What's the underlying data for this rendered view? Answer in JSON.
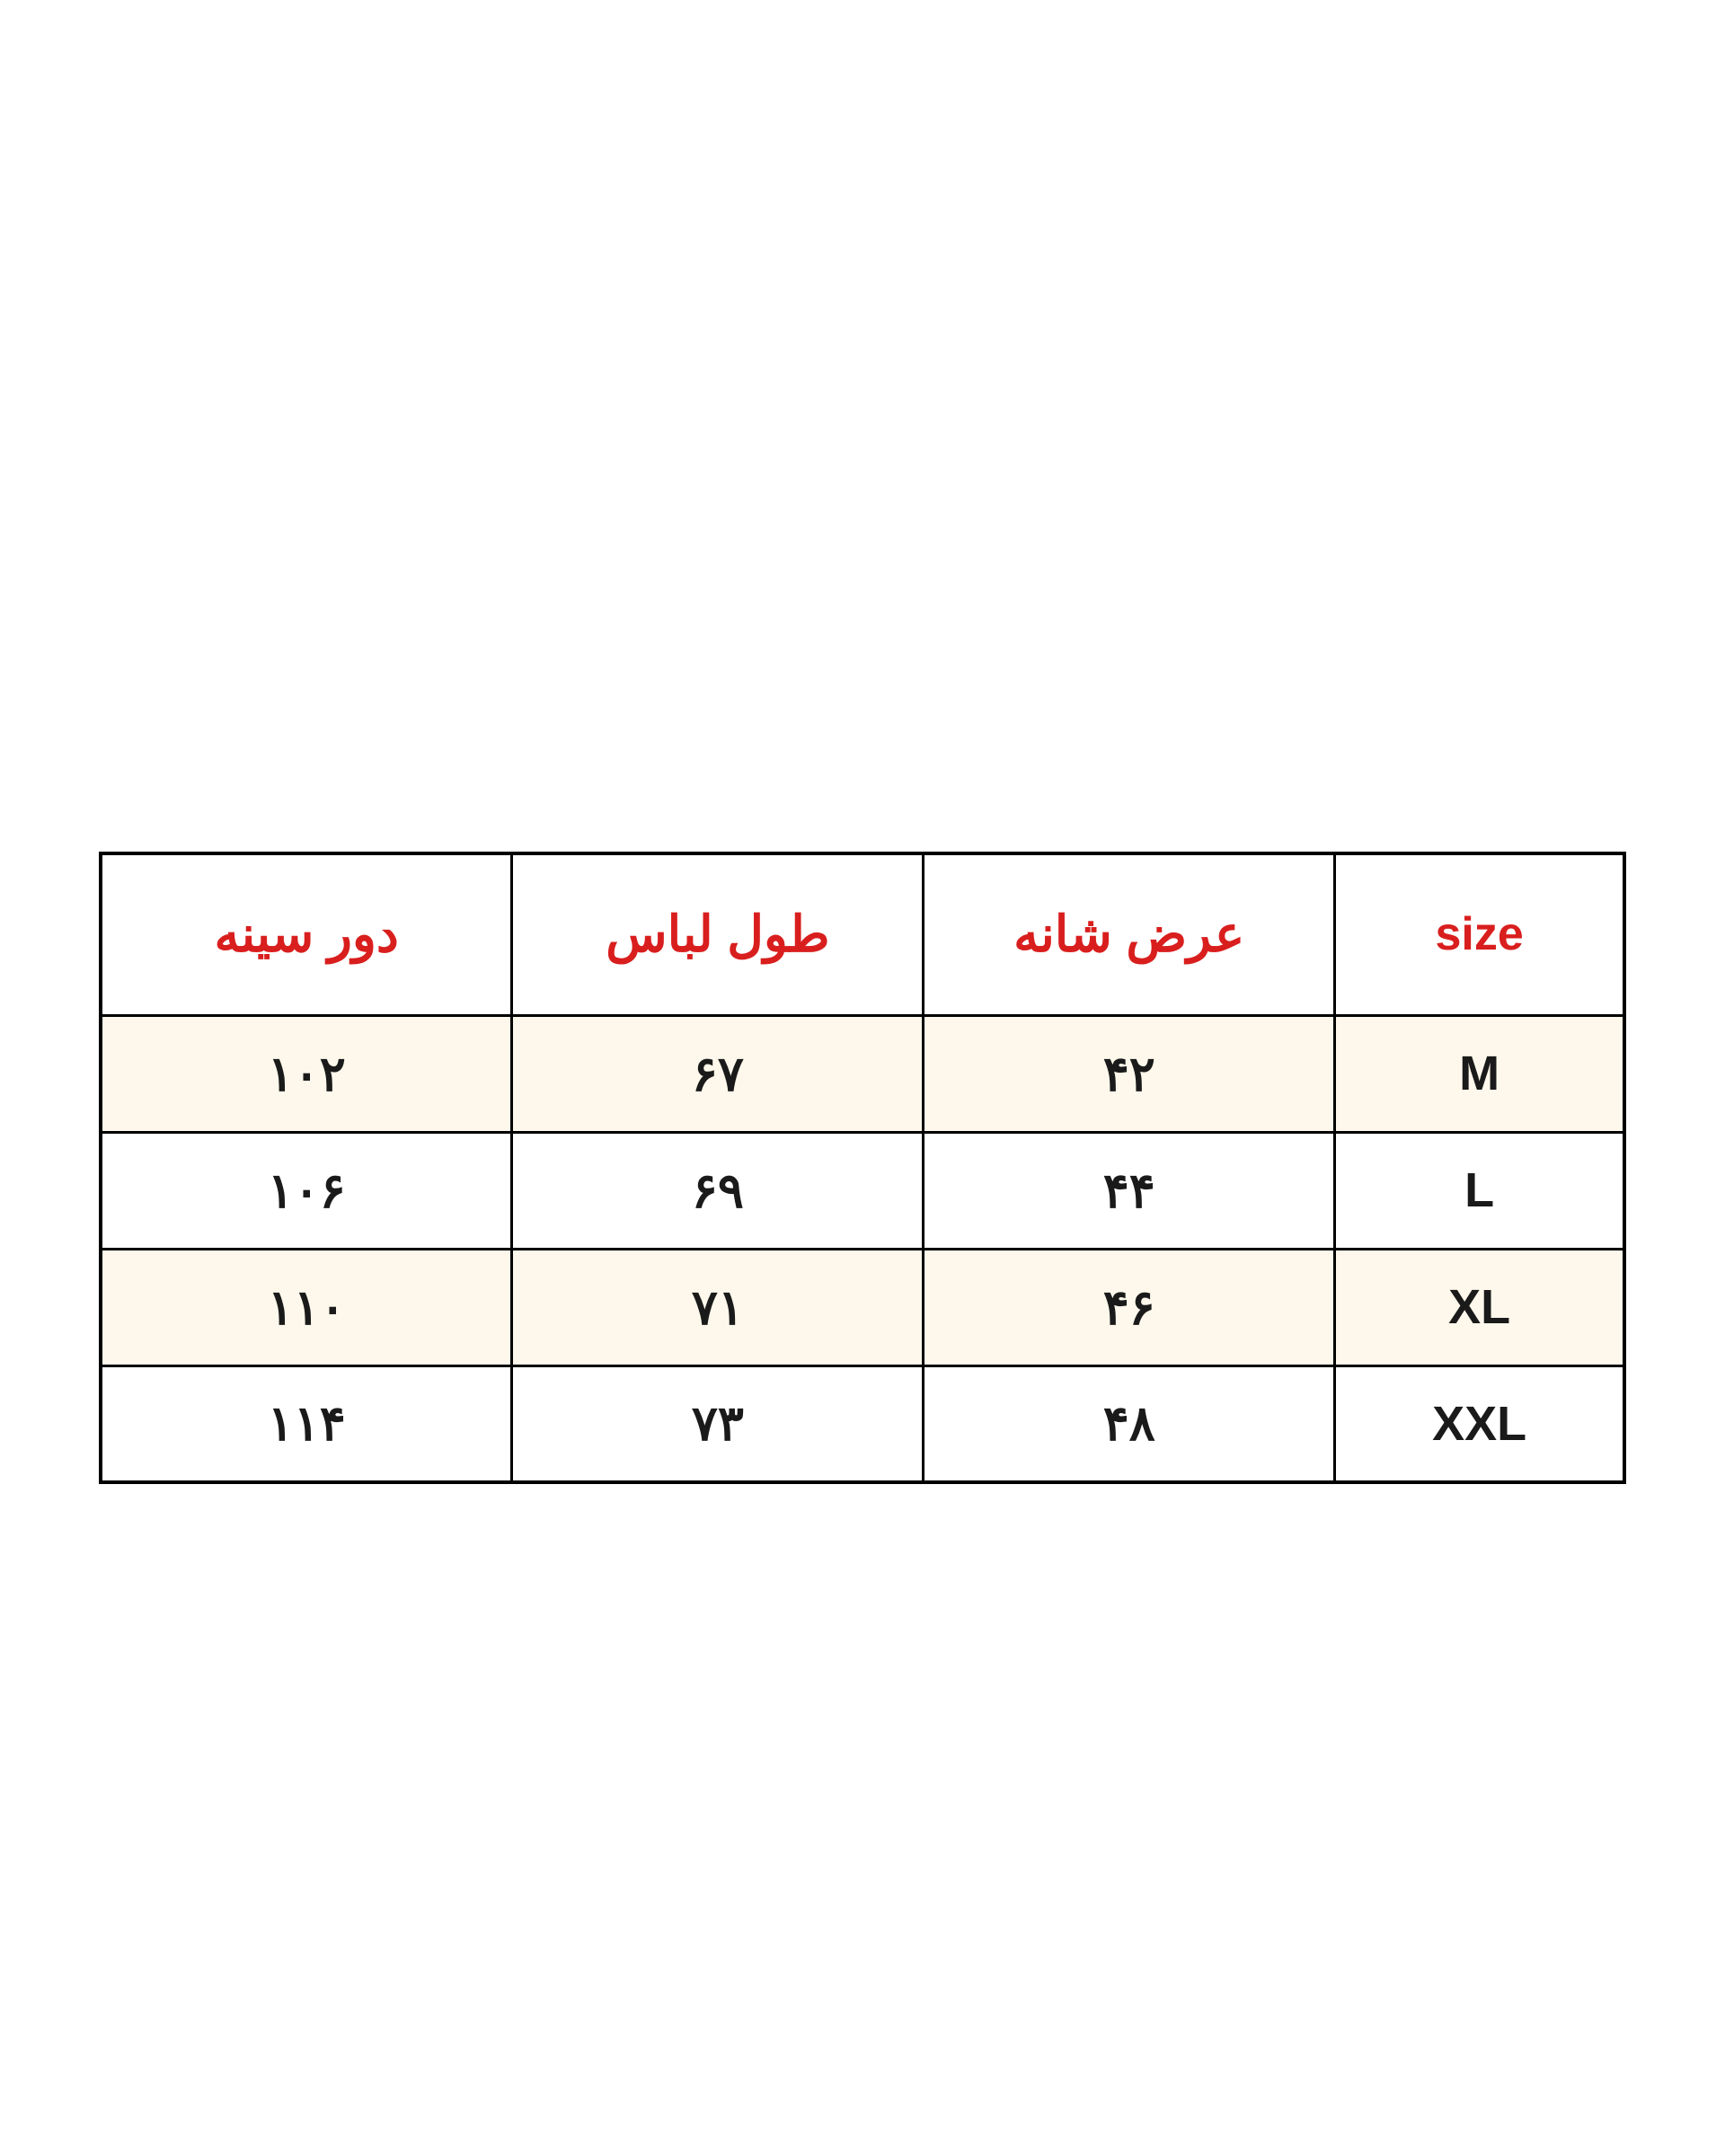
{
  "table": {
    "headers": [
      {
        "text": "دور سینه",
        "type": "persian"
      },
      {
        "text": "طول لباس",
        "type": "persian"
      },
      {
        "text": "عرض شانه",
        "type": "persian"
      },
      {
        "text": "size",
        "type": "size"
      }
    ],
    "rows": [
      {
        "cells": [
          "۱۰۲",
          "۶۷",
          "۴۲",
          "M"
        ],
        "bg": "cream"
      },
      {
        "cells": [
          "۱۰۶",
          "۶۹",
          "۴۴",
          "L"
        ],
        "bg": "white"
      },
      {
        "cells": [
          "۱۱۰",
          "۷۱",
          "۴۶",
          "XL"
        ],
        "bg": "cream"
      },
      {
        "cells": [
          "۱۱۴",
          "۷۳",
          "۴۸",
          "XXL"
        ],
        "bg": "white"
      }
    ],
    "styling": {
      "border_color": "#000000",
      "border_width": 3,
      "header_text_color": "#d91e1e",
      "body_text_color": "#1a1a1a",
      "cream_bg": "#fdf8eb",
      "white_bg": "#ffffff",
      "header_fontsize": 56,
      "body_fontsize": 54,
      "column_widths": [
        "27%",
        "27%",
        "27%",
        "19%"
      ]
    }
  }
}
